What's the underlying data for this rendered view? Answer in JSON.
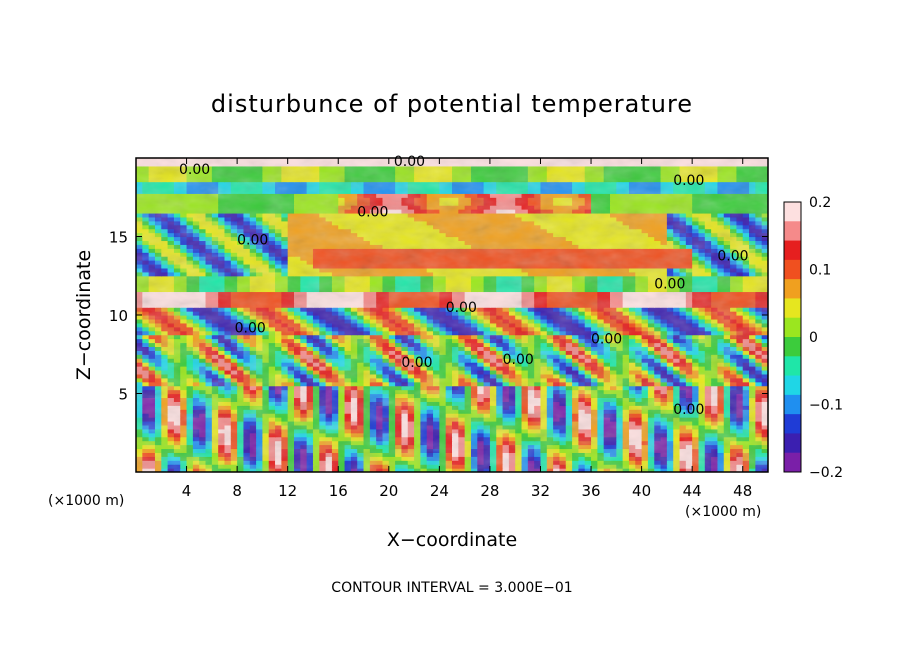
{
  "chart_data": {
    "type": "heatmap",
    "title": "disturbunce of potential temperature",
    "xlabel": "X−coordinate",
    "ylabel": "Z−coordinate",
    "x_unit": "(×1000 m)",
    "x_unit_right": "(×1000 m)",
    "footer": "CONTOUR INTERVAL = 3.000E−01",
    "xlim": [
      0,
      50
    ],
    "ylim": [
      0,
      20
    ],
    "x_ticks": [
      "4",
      "8",
      "12",
      "16",
      "20",
      "24",
      "28",
      "32",
      "36",
      "40",
      "44",
      "48"
    ],
    "y_ticks": [
      "5",
      "10",
      "15"
    ],
    "colorbar": {
      "range": [
        -0.2,
        0.2
      ],
      "tick_labels": [
        "0.2",
        "0.1",
        "0",
        "−0.1",
        "−0.2"
      ],
      "colors": [
        "#7a1fa8",
        "#3b1fb0",
        "#1f3cd6",
        "#1f8ff0",
        "#1fd6e6",
        "#1fe6a8",
        "#3ccc3c",
        "#9be61f",
        "#e6e61f",
        "#f0a01f",
        "#f0501f",
        "#e61f1f",
        "#f58a8a",
        "#fde0e0"
      ]
    },
    "contour_labels": [
      {
        "text": "0.00",
        "x": 3.4,
        "y": 19.3
      },
      {
        "text": "0.00",
        "x": 20.4,
        "y": 19.8
      },
      {
        "text": "0.00",
        "x": 42.5,
        "y": 18.6
      },
      {
        "text": "0.00",
        "x": 17.5,
        "y": 16.6
      },
      {
        "text": "0.00",
        "x": 8.0,
        "y": 14.8
      },
      {
        "text": "0.00",
        "x": 46.0,
        "y": 13.8
      },
      {
        "text": "0.00",
        "x": 41.0,
        "y": 12.0
      },
      {
        "text": "0.00",
        "x": 7.8,
        "y": 9.2
      },
      {
        "text": "0.00",
        "x": 24.5,
        "y": 10.5
      },
      {
        "text": "0.00",
        "x": 36.0,
        "y": 8.5
      },
      {
        "text": "0.00",
        "x": 21.0,
        "y": 7.0
      },
      {
        "text": "0.00",
        "x": 29.0,
        "y": 7.2
      },
      {
        "text": "0.00",
        "x": 42.5,
        "y": 4.0
      }
    ]
  }
}
